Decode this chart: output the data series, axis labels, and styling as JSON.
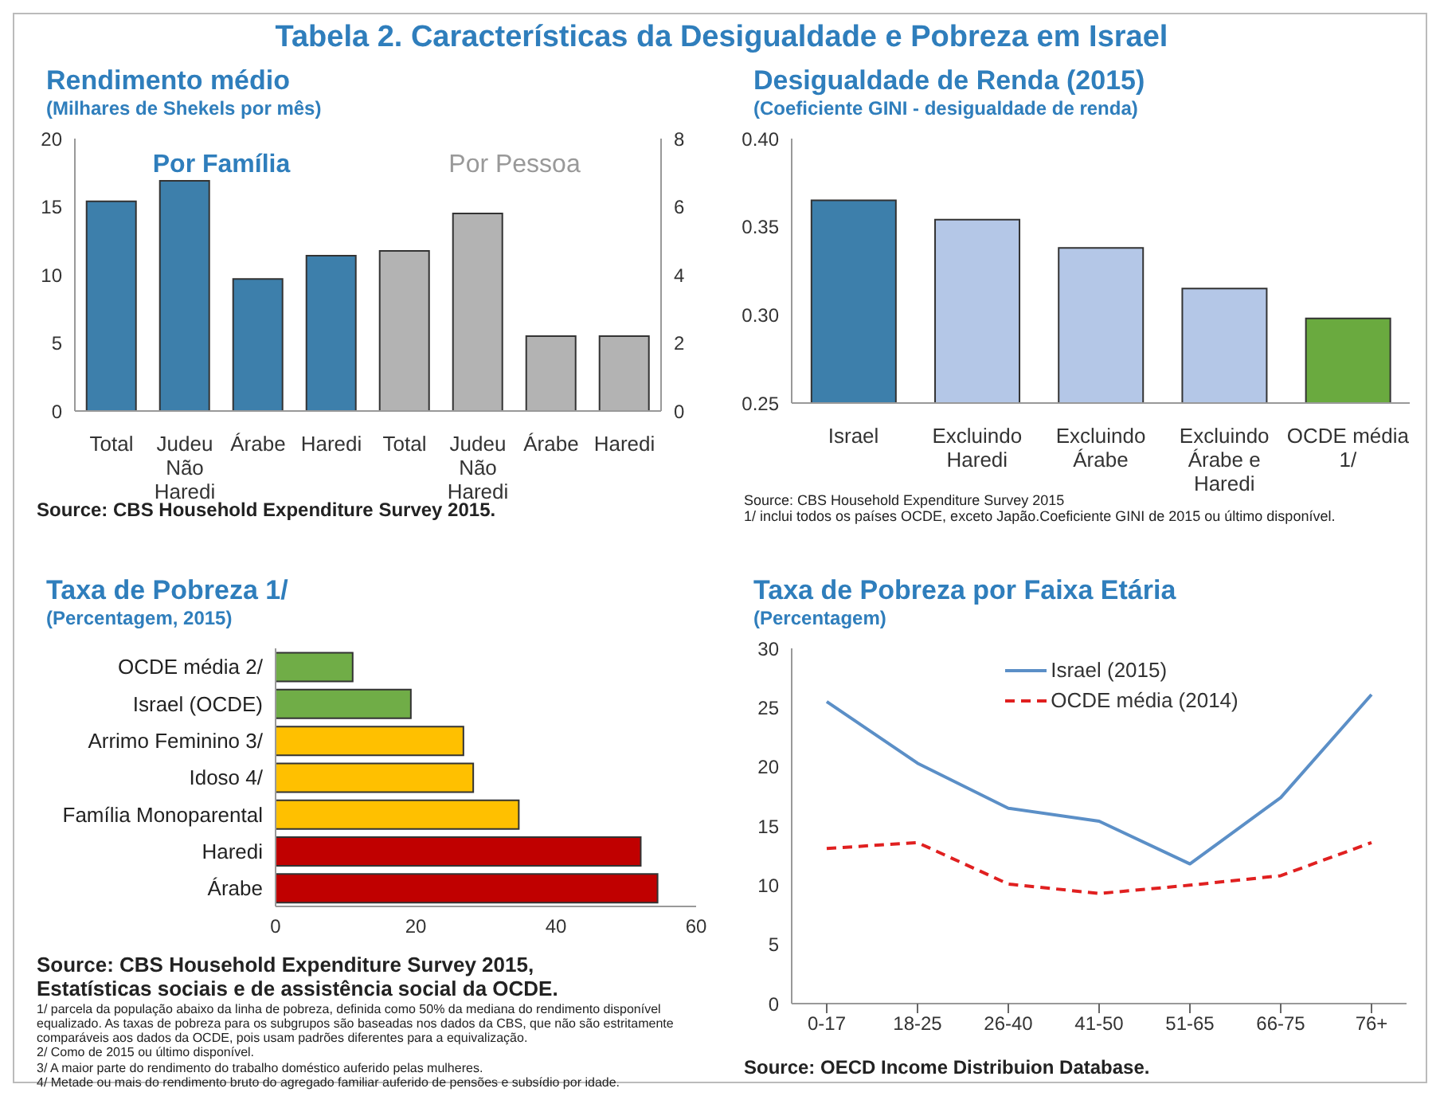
{
  "chart_data": [
    {
      "type": "other",
      "title": "Tabela 2. Características da Desigualdade e Pobreza em Israel"
    },
    {
      "type": "bar",
      "title": "Rendimento médio",
      "subtitle": "(Milhares de Shekels por mês)",
      "categories": [
        "Total",
        "Judeu Não Haredi",
        "Árabe",
        "Haredi",
        "Total",
        "Judeu Não Haredi",
        "Árabe",
        "Haredi"
      ],
      "series": [
        {
          "name": "Por Família",
          "color": "#3d7fab",
          "values": [
            15.4,
            16.9,
            9.7,
            11.4,
            null,
            null,
            null,
            null
          ]
        },
        {
          "name": "Por Pessoa",
          "color": "#b3b3b3",
          "axis": "y2",
          "values": [
            null,
            null,
            null,
            null,
            4.7,
            5.8,
            2.2,
            2.2
          ]
        }
      ],
      "ylim": [
        0,
        20
      ],
      "yticks": [
        0,
        5,
        10,
        15,
        20
      ],
      "y2lim": [
        0,
        8
      ],
      "y2ticks": [
        0,
        2,
        4,
        6,
        8
      ],
      "annotations": [
        "Source: CBS Household Expenditure Survey 2015."
      ]
    },
    {
      "type": "bar",
      "title": "Desigualdade de Renda (2015)",
      "subtitle": "(Coeficiente GINI - desigualdade de renda)",
      "categories": [
        "Israel",
        "Excluindo Haredi",
        "Excluindo Árabe",
        "Excluindo Árabe e Haredi",
        "OCDE média 1/"
      ],
      "values": [
        0.365,
        0.354,
        0.338,
        0.315,
        0.298
      ],
      "colors": [
        "#3d7fab",
        "#b4c7e7",
        "#b4c7e7",
        "#b4c7e7",
        "#6aaa3f"
      ],
      "ylim": [
        0.25,
        0.4
      ],
      "yticks": [
        0.25,
        {
          "value": 0.3,
          "label": "0.30"
        },
        0.35,
        {
          "value": 0.4,
          "label": "0.40"
        }
      ],
      "annotations": [
        "Source: CBS Household Expenditure Survey 2015",
        "1/ inclui todos os países OCDE, exceto Japão.Coeficiente GINI  de 2015 ou último disponível."
      ]
    },
    {
      "type": "bar",
      "orientation": "horizontal",
      "title": "Taxa de Pobreza 1/",
      "subtitle": "(Percentagem, 2015)",
      "categories": [
        "OCDE média 2/",
        "Israel (OCDE)",
        "Arrimo Feminino 3/",
        "Idoso 4/",
        "Família Monoparental",
        "Haredi",
        "Árabe"
      ],
      "values": [
        11,
        19.3,
        26.8,
        28.2,
        34.7,
        52.1,
        54.5
      ],
      "colors": [
        "#70ad47",
        "#70ad47",
        "#ffc000",
        "#ffc000",
        "#ffc000",
        "#c00000",
        "#c00000"
      ],
      "xlim": [
        0,
        60
      ],
      "xticks": [
        0,
        20,
        40,
        60
      ],
      "annotations": [
        "Source: CBS Household Expenditure Survey 2015,",
        "Estatísticas sociais e de assistência social da OCDE.",
        "1/ parcela da população abaixo da linha de pobreza, definida como 50% da mediana do rendimento disponível equalizado. As taxas de pobreza para os subgrupos são baseadas nos dados da CBS, que não são estritamente comparáveis aos dados da OCDE, pois usam padrões diferentes para a equivalização.",
        "2/ Como de 2015 ou último disponível.",
        "3/ A maior parte do rendimento do trabalho doméstico auferido pelas mulheres.",
        "4/ Metade ou mais do rendimento bruto do agregado familiar auferido de pensões e subsídio por idade."
      ]
    },
    {
      "type": "line",
      "title": "Taxa de Pobreza por Faixa Etária",
      "subtitle": "(Percentagem)",
      "categories": [
        "0-17",
        "18-25",
        "26-40",
        "41-50",
        "51-65",
        "66-75",
        "76+"
      ],
      "series": [
        {
          "name": "Israel (2015)",
          "color": "#5b8fc7",
          "line_style": "solid",
          "values": [
            25.5,
            20.3,
            16.5,
            15.4,
            11.8,
            17.4,
            26.1
          ]
        },
        {
          "name": "OCDE média (2014)",
          "color": "#e02020",
          "line_style": "dashed",
          "values": [
            13.1,
            13.6,
            10.1,
            9.3,
            10.0,
            10.8,
            13.6
          ]
        }
      ],
      "ylim": [
        0,
        30
      ],
      "yticks": [
        0,
        5,
        10,
        15,
        20,
        25,
        30
      ],
      "legend": "top",
      "marker": "none",
      "annotations": [
        "Source: OECD Income Distribuion Database."
      ]
    }
  ]
}
